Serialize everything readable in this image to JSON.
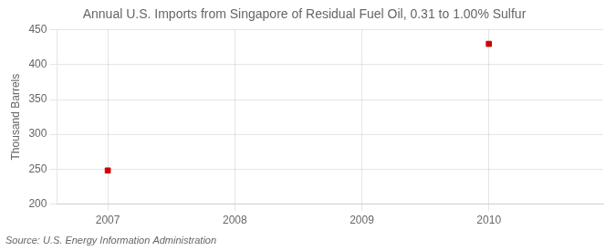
{
  "chart_data": {
    "type": "scatter",
    "title": "Annual U.S. Imports from Singapore of Residual Fuel Oil, 0.31 to 1.00% Sulfur",
    "ylabel": "Thousand Barrels",
    "source": "Source: U.S. Energy Information Administration",
    "x": [
      2007,
      2010
    ],
    "values": [
      248,
      430
    ],
    "color": "#CC0000",
    "marker": "square",
    "xlim": [
      2006.6,
      2010.9
    ],
    "xticks": [
      2007,
      2008,
      2009,
      2010
    ],
    "ylim": [
      200,
      450
    ],
    "yticks": [
      200,
      250,
      300,
      350,
      400,
      450
    ],
    "grid": true
  }
}
